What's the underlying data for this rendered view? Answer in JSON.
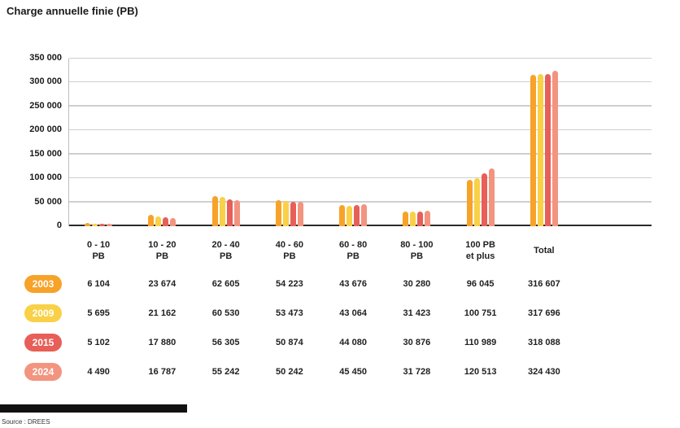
{
  "title": "Charge annuelle finie (PB)",
  "source": "Source : DREES",
  "chart_data": {
    "type": "bar",
    "title": "Charge annuelle finie (PB)",
    "categories": [
      "0 - 10\nPB",
      "10 - 20\nPB",
      "20 - 40\nPB",
      "40 - 60\nPB",
      "60 - 80\nPB",
      "80 - 100\nPB",
      "100 PB\net plus",
      "Total"
    ],
    "series": [
      {
        "name": "2003",
        "color": "#F7A229",
        "values": [
          6104,
          23674,
          62605,
          54223,
          43676,
          30280,
          96045,
          316607
        ],
        "labels": [
          "6 104",
          "23 674",
          "62 605",
          "54 223",
          "43 676",
          "30 280",
          "96 045",
          "316 607"
        ]
      },
      {
        "name": "2009",
        "color": "#F9D148",
        "values": [
          5695,
          21162,
          60530,
          53473,
          43064,
          31423,
          100751,
          317696
        ],
        "labels": [
          "5 695",
          "21 162",
          "60 530",
          "53 473",
          "43 064",
          "31 423",
          "100 751",
          "317 696"
        ]
      },
      {
        "name": "2015",
        "color": "#E75F58",
        "values": [
          5102,
          17880,
          56305,
          50874,
          44080,
          30876,
          110989,
          318088
        ],
        "labels": [
          "5 102",
          "17 880",
          "56 305",
          "50 874",
          "44 080",
          "30 876",
          "110 989",
          "318 088"
        ]
      },
      {
        "name": "2024",
        "color": "#F29480",
        "values": [
          4490,
          16787,
          55242,
          50242,
          45450,
          31728,
          120513,
          324430
        ],
        "labels": [
          "4 490",
          "16 787",
          "55 242",
          "50 242",
          "45 450",
          "31 728",
          "120 513",
          "324 430"
        ]
      }
    ],
    "ylim": [
      0,
      350000
    ],
    "ytick_step": 50000,
    "ytick_labels": [
      "0",
      "50 000",
      "100 000",
      "150 000",
      "200 000",
      "250 000",
      "300 000",
      "350 000"
    ],
    "xlabel": "",
    "ylabel": "",
    "grid": true,
    "legend_position": "left-of-table-rows"
  }
}
